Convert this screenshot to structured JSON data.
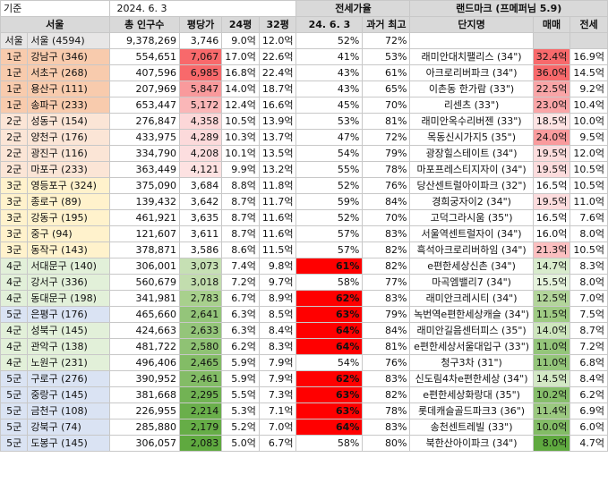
{
  "top_row": {
    "base_label": "기준",
    "date": "2024. 6. 3",
    "jeonse_group": "전세가율",
    "landmark_group": "랜드마크 (프메퍼님 5.9)"
  },
  "headers": [
    "서울",
    "총 인구수",
    "평당가",
    "24평",
    "32평",
    "24. 6. 3",
    "과거 최고",
    "단지명",
    "매매",
    "전세"
  ],
  "colors": {
    "gun": {
      "서울": "#e7e6e6",
      "1군": "#f8cbad",
      "2군": "#fbe5d6",
      "3군": "#fff2cc",
      "4군": "#e2f0d9",
      "5군": "#dae3f3"
    },
    "red": "#ff0000",
    "header_gray": "#d9d9d9"
  },
  "rows": [
    {
      "gun": "서울",
      "district": "서울 (4594)",
      "pop": "9,378,269",
      "ppy": "3,746",
      "ppy_color": "",
      "p24": "9.0억",
      "p32": "12.0억",
      "jr": "52%",
      "jr_hl": false,
      "jmax": "72%",
      "complex": "",
      "sale": "",
      "sale_color": "#d9d9d9",
      "jeonse": "",
      "jeonse_color": "#d9d9d9"
    },
    {
      "gun": "1군",
      "district": "강남구 (346)",
      "pop": "554,651",
      "ppy": "7,067",
      "ppy_color": "#f8696b",
      "p24": "17.0억",
      "p32": "22.6억",
      "jr": "41%",
      "jr_hl": false,
      "jmax": "53%",
      "complex": "래미안대치팰리스 (34\")",
      "sale": "32.4억",
      "sale_color": "#f8696b",
      "jeonse": "16.9억",
      "jeonse_color": ""
    },
    {
      "gun": "1군",
      "district": "서초구 (268)",
      "pop": "407,596",
      "ppy": "6,985",
      "ppy_color": "#f8696b",
      "p24": "16.8억",
      "p32": "22.4억",
      "jr": "43%",
      "jr_hl": false,
      "jmax": "61%",
      "complex": "아크로리버파크 (34\")",
      "sale": "36.0억",
      "sale_color": "#f8696b",
      "jeonse": "14.5억",
      "jeonse_color": ""
    },
    {
      "gun": "1군",
      "district": "용산구 (111)",
      "pop": "207,969",
      "ppy": "5,847",
      "ppy_color": "#f99a9c",
      "p24": "14.0억",
      "p32": "18.7억",
      "jr": "43%",
      "jr_hl": false,
      "jmax": "65%",
      "complex": "이촌동 한가람 (33\")",
      "sale": "22.5억",
      "sale_color": "#f9a5a7",
      "jeonse": "9.2억",
      "jeonse_color": ""
    },
    {
      "gun": "1군",
      "district": "송파구 (233)",
      "pop": "653,447",
      "ppy": "5,172",
      "ppy_color": "#fab7b8",
      "p24": "12.4억",
      "p32": "16.6억",
      "jr": "45%",
      "jr_hl": false,
      "jmax": "70%",
      "complex": "리센츠 (33\")",
      "sale": "23.0억",
      "sale_color": "#f9a5a7",
      "jeonse": "10.4억",
      "jeonse_color": ""
    },
    {
      "gun": "2군",
      "district": "성동구 (154)",
      "pop": "276,847",
      "ppy": "4,358",
      "ppy_color": "#fcd7d8",
      "p24": "10.5억",
      "p32": "13.9억",
      "jr": "53%",
      "jr_hl": false,
      "jmax": "81%",
      "complex": "래미안옥수리버젠 (33\")",
      "sale": "18.5억",
      "sale_color": "#fde3e3",
      "jeonse": "10.0억",
      "jeonse_color": ""
    },
    {
      "gun": "2군",
      "district": "양천구 (176)",
      "pop": "433,975",
      "ppy": "4,289",
      "ppy_color": "#fcdadb",
      "p24": "10.3억",
      "p32": "13.7억",
      "jr": "47%",
      "jr_hl": false,
      "jmax": "72%",
      "complex": "목동신시가지5 (35\")",
      "sale": "24.0억",
      "sale_color": "#f99b9d",
      "jeonse": "9.5억",
      "jeonse_color": ""
    },
    {
      "gun": "2군",
      "district": "광진구 (116)",
      "pop": "334,790",
      "ppy": "4,208",
      "ppy_color": "#fcdedf",
      "p24": "10.1억",
      "p32": "13.5억",
      "jr": "54%",
      "jr_hl": false,
      "jmax": "79%",
      "complex": "광장힐스테이트 (34\")",
      "sale": "19.5억",
      "sale_color": "#fcdcdd",
      "jeonse": "12.0억",
      "jeonse_color": ""
    },
    {
      "gun": "2군",
      "district": "마포구 (233)",
      "pop": "363,449",
      "ppy": "4,121",
      "ppy_color": "#fde2e2",
      "p24": "9.9억",
      "p32": "13.2억",
      "jr": "55%",
      "jr_hl": false,
      "jmax": "78%",
      "complex": "마포프레스티지자이 (34\")",
      "sale": "19.5억",
      "sale_color": "#fcdcdd",
      "jeonse": "10.5억",
      "jeonse_color": ""
    },
    {
      "gun": "3군",
      "district": "영등포구 (324)",
      "pop": "375,090",
      "ppy": "3,684",
      "ppy_color": "",
      "p24": "8.8억",
      "p32": "11.8억",
      "jr": "52%",
      "jr_hl": false,
      "jmax": "76%",
      "complex": "당산센트럴아이파크 (32\")",
      "sale": "16.5억",
      "sale_color": "",
      "jeonse": "10.5억",
      "jeonse_color": ""
    },
    {
      "gun": "3군",
      "district": "종로구 (89)",
      "pop": "139,432",
      "ppy": "3,642",
      "ppy_color": "",
      "p24": "8.7억",
      "p32": "11.7억",
      "jr": "59%",
      "jr_hl": false,
      "jmax": "84%",
      "complex": "경희궁자이2 (34\")",
      "sale": "19.5억",
      "sale_color": "#fcdcdd",
      "jeonse": "11.0억",
      "jeonse_color": ""
    },
    {
      "gun": "3군",
      "district": "강동구 (195)",
      "pop": "461,921",
      "ppy": "3,635",
      "ppy_color": "",
      "p24": "8.7억",
      "p32": "11.6억",
      "jr": "52%",
      "jr_hl": false,
      "jmax": "70%",
      "complex": "고덕그라시움 (35\")",
      "sale": "16.5억",
      "sale_color": "",
      "jeonse": "7.6억",
      "jeonse_color": ""
    },
    {
      "gun": "3군",
      "district": "중구 (94)",
      "pop": "121,607",
      "ppy": "3,611",
      "ppy_color": "",
      "p24": "8.7억",
      "p32": "11.6억",
      "jr": "57%",
      "jr_hl": false,
      "jmax": "83%",
      "complex": "서울역센트럴자이 (34\")",
      "sale": "16.0억",
      "sale_color": "",
      "jeonse": "8.0억",
      "jeonse_color": ""
    },
    {
      "gun": "3군",
      "district": "동작구 (143)",
      "pop": "378,871",
      "ppy": "3,586",
      "ppy_color": "",
      "p24": "8.6억",
      "p32": "11.5억",
      "jr": "57%",
      "jr_hl": false,
      "jmax": "82%",
      "complex": "흑석아크로리버하임 (34\")",
      "sale": "21.3억",
      "sale_color": "#fbbfc0",
      "jeonse": "10.5억",
      "jeonse_color": ""
    },
    {
      "gun": "4군",
      "district": "서대문구 (140)",
      "pop": "306,001",
      "ppy": "3,073",
      "ppy_color": "#c6e0b4",
      "p24": "7.4억",
      "p32": "9.8억",
      "jr": "61%",
      "jr_hl": true,
      "jmax": "82%",
      "complex": "e편한세상신촌 (34\")",
      "sale": "14.7억",
      "sale_color": "#d8ebcc",
      "jeonse": "8.3억",
      "jeonse_color": ""
    },
    {
      "gun": "4군",
      "district": "강서구 (336)",
      "pop": "560,679",
      "ppy": "3,018",
      "ppy_color": "#c2ddae",
      "p24": "7.2억",
      "p32": "9.7억",
      "jr": "58%",
      "jr_hl": false,
      "jmax": "77%",
      "complex": "마곡엠밸리7 (34\")",
      "sale": "15.5억",
      "sale_color": "#e5f2dc",
      "jeonse": "8.0억",
      "jeonse_color": ""
    },
    {
      "gun": "4군",
      "district": "동대문구 (198)",
      "pop": "341,981",
      "ppy": "2,783",
      "ppy_color": "#a8d08d",
      "p24": "6.7억",
      "p32": "8.9억",
      "jr": "62%",
      "jr_hl": true,
      "jmax": "83%",
      "complex": "래미안크레시티 (34\")",
      "sale": "12.5억",
      "sale_color": "#b3d59b",
      "jeonse": "7.0억",
      "jeonse_color": ""
    },
    {
      "gun": "5군",
      "district": "은평구 (176)",
      "pop": "465,660",
      "ppy": "2,641",
      "ppy_color": "#94c57a",
      "p24": "6.3억",
      "p32": "8.5억",
      "jr": "63%",
      "jr_hl": true,
      "jmax": "79%",
      "complex": "녹번역e편한세상캐슬 (34\")",
      "sale": "11.5억",
      "sale_color": "#9fcb84",
      "jeonse": "7.5억",
      "jeonse_color": ""
    },
    {
      "gun": "4군",
      "district": "성북구 (145)",
      "pop": "424,663",
      "ppy": "2,633",
      "ppy_color": "#94c57a",
      "p24": "6.3억",
      "p32": "8.4억",
      "jr": "64%",
      "jr_hl": true,
      "jmax": "84%",
      "complex": "래미안길음센터피스 (35\")",
      "sale": "14.0억",
      "sale_color": "#cde5bd",
      "jeonse": "8.7억",
      "jeonse_color": ""
    },
    {
      "gun": "4군",
      "district": "관악구 (138)",
      "pop": "481,722",
      "ppy": "2,580",
      "ppy_color": "#8fc274",
      "p24": "6.2억",
      "p32": "8.3억",
      "jr": "64%",
      "jr_hl": true,
      "jmax": "81%",
      "complex": "e편한세상서울대입구 (33\")",
      "sale": "11.0억",
      "sale_color": "#94c57a",
      "jeonse": "7.2억",
      "jeonse_color": ""
    },
    {
      "gun": "4군",
      "district": "노원구 (231)",
      "pop": "496,406",
      "ppy": "2,465",
      "ppy_color": "#83bc66",
      "p24": "5.9억",
      "p32": "7.9억",
      "jr": "54%",
      "jr_hl": false,
      "jmax": "76%",
      "complex": "청구3차 (31\")",
      "sale": "11.0억",
      "sale_color": "#94c57a",
      "jeonse": "6.8억",
      "jeonse_color": ""
    },
    {
      "gun": "5군",
      "district": "구로구 (276)",
      "pop": "390,952",
      "ppy": "2,461",
      "ppy_color": "#83bc66",
      "p24": "5.9억",
      "p32": "7.9억",
      "jr": "62%",
      "jr_hl": true,
      "jmax": "83%",
      "complex": "신도림4차e편한세상 (34\")",
      "sale": "14.5억",
      "sale_color": "#d3e8c5",
      "jeonse": "8.4억",
      "jeonse_color": ""
    },
    {
      "gun": "5군",
      "district": "중랑구 (145)",
      "pop": "381,668",
      "ppy": "2,295",
      "ppy_color": "#72b354",
      "p24": "5.5억",
      "p32": "7.3억",
      "jr": "63%",
      "jr_hl": true,
      "jmax": "82%",
      "complex": "e편한세상화랑대 (35\")",
      "sale": "10.2억",
      "sale_color": "#86bd6a",
      "jeonse": "6.2억",
      "jeonse_color": ""
    },
    {
      "gun": "5군",
      "district": "금천구 (108)",
      "pop": "226,955",
      "ppy": "2,214",
      "ppy_color": "#6aaf4b",
      "p24": "5.3억",
      "p32": "7.1억",
      "jr": "63%",
      "jr_hl": true,
      "jmax": "78%",
      "complex": "롯데캐슬골드파크3 (36\")",
      "sale": "11.4억",
      "sale_color": "#9bc880",
      "jeonse": "6.9억",
      "jeonse_color": ""
    },
    {
      "gun": "5군",
      "district": "강북구 (74)",
      "pop": "285,880",
      "ppy": "2,179",
      "ppy_color": "#66ad47",
      "p24": "5.2억",
      "p32": "7.0억",
      "jr": "64%",
      "jr_hl": true,
      "jmax": "83%",
      "complex": "송천센트레빌 (33\")",
      "sale": "10.0억",
      "sale_color": "#83bc66",
      "jeonse": "6.0억",
      "jeonse_color": ""
    },
    {
      "gun": "5군",
      "district": "도봉구 (145)",
      "pop": "306,057",
      "ppy": "2,083",
      "ppy_color": "#5fa93f",
      "p24": "5.0억",
      "p32": "6.7억",
      "jr": "58%",
      "jr_hl": false,
      "jmax": "80%",
      "complex": "북한산아이파크 (34\")",
      "sale": "8.0억",
      "sale_color": "#5fa93f",
      "jeonse": "4.7억",
      "jeonse_color": ""
    }
  ]
}
